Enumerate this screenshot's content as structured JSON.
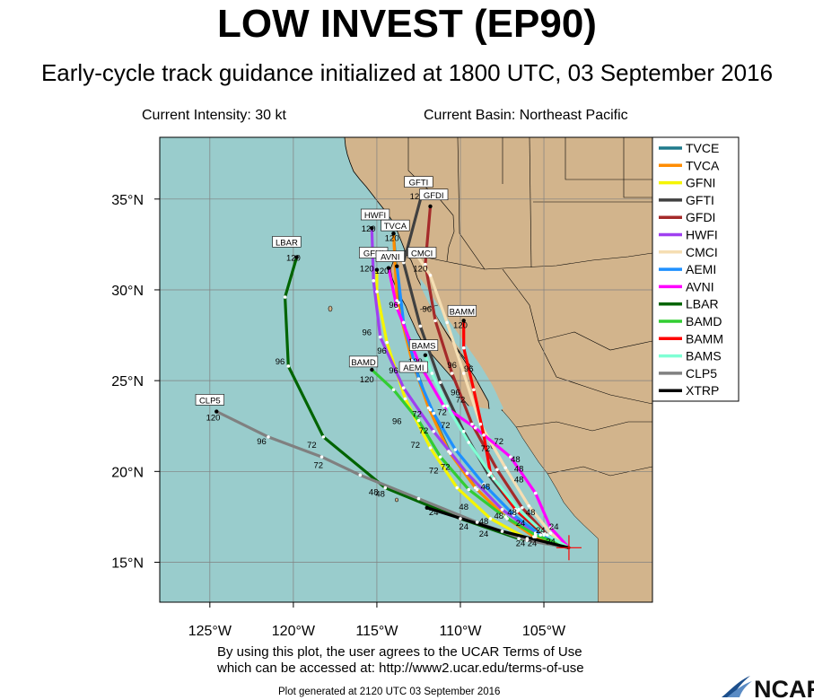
{
  "title": "LOW INVEST (EP90)",
  "subtitle": "Early-cycle track guidance initialized at 1800 UTC, 03 September 2016",
  "current_intensity": "Current Intensity: 30 kt",
  "current_basin": "Current Basin: Northeast Pacific",
  "terms_line1": "By using this plot, the user agrees to the UCAR Terms of Use",
  "terms_line2": "which can be accessed at: http://www2.ucar.edu/terms-of-use",
  "generated": "Plot generated at 2120 UTC   03 September 2016",
  "logo_text": "NCAR",
  "colors": {
    "ocean": "#99cccc",
    "land": "#d2b48c",
    "grid": "#808080"
  },
  "axes": {
    "lon_ticks": [
      -125,
      -120,
      -115,
      -110,
      -105
    ],
    "lon_labels": [
      "125°W",
      "120°W",
      "115°W",
      "110°W",
      "105°W"
    ],
    "lat_ticks": [
      15,
      20,
      25,
      30,
      35
    ],
    "lat_labels": [
      "15°N",
      "20°N",
      "25°N",
      "30°N",
      "35°N"
    ],
    "lon_range": [
      -128,
      -98.5
    ],
    "lat_range": [
      12.8,
      38.4
    ]
  },
  "current_position": {
    "lon": -103.5,
    "lat": 15.8
  },
  "legend": [
    {
      "name": "TVCE",
      "color": "#1f7a8c"
    },
    {
      "name": "TVCA",
      "color": "#ff8c00"
    },
    {
      "name": "GFNI",
      "color": "#f5f500"
    },
    {
      "name": "GFTI",
      "color": "#404040"
    },
    {
      "name": "GFDI",
      "color": "#a52a2a"
    },
    {
      "name": "HWFI",
      "color": "#a040f0"
    },
    {
      "name": "CMCI",
      "color": "#f5deb3"
    },
    {
      "name": "AEMI",
      "color": "#1e90ff"
    },
    {
      "name": "AVNI",
      "color": "#ff00ff"
    },
    {
      "name": "LBAR",
      "color": "#006400"
    },
    {
      "name": "BAMD",
      "color": "#32cd32"
    },
    {
      "name": "BAMM",
      "color": "#ff0000"
    },
    {
      "name": "BAMS",
      "color": "#7fffd4"
    },
    {
      "name": "CLP5",
      "color": "#808080"
    },
    {
      "name": "XTRP",
      "color": "#000000"
    }
  ],
  "tracks": [
    {
      "name": "TVCE",
      "color": "#1f7a8c",
      "points": [
        [
          -103.5,
          15.8
        ],
        [
          -105.5,
          16.4
        ],
        [
          -107.2,
          17.4
        ],
        [
          -109,
          19
        ],
        [
          -110.6,
          21
        ],
        [
          -111.8,
          23.4
        ],
        [
          -112.8,
          26
        ],
        [
          -113.7,
          29.3
        ],
        [
          -114,
          33.1
        ]
      ]
    },
    {
      "name": "TVCA",
      "color": "#ff8c00",
      "points": [
        [
          -103.5,
          15.8
        ],
        [
          -105.6,
          16.4
        ],
        [
          -107.3,
          17.5
        ],
        [
          -109.1,
          19.1
        ],
        [
          -110.7,
          21.1
        ],
        [
          -111.9,
          23.5
        ],
        [
          -112.9,
          26.1
        ],
        [
          -113.8,
          29.4
        ],
        [
          -114,
          33.1
        ]
      ]
    },
    {
      "name": "GFNI",
      "color": "#f5f500",
      "points": [
        [
          -103.5,
          15.8
        ],
        [
          -106,
          16.3
        ],
        [
          -108.2,
          17.4
        ],
        [
          -110.2,
          19.1
        ],
        [
          -111.8,
          21.3
        ],
        [
          -113.3,
          24
        ],
        [
          -114.4,
          27.1
        ],
        [
          -115,
          29.9
        ],
        [
          -115,
          31.1
        ]
      ]
    },
    {
      "name": "GFTI",
      "color": "#404040",
      "points": [
        [
          -103.5,
          15.8
        ],
        [
          -105,
          16.5
        ],
        [
          -106.6,
          17.8
        ],
        [
          -108.3,
          19.8
        ],
        [
          -109.8,
          22.2
        ],
        [
          -111.2,
          24.9
        ],
        [
          -112.4,
          28
        ],
        [
          -113.4,
          31.5
        ],
        [
          -112.3,
          35.3
        ]
      ]
    },
    {
      "name": "GFDI",
      "color": "#a52a2a",
      "points": [
        [
          -103.5,
          15.8
        ],
        [
          -104.8,
          16.5
        ],
        [
          -106.3,
          18
        ],
        [
          -107.8,
          20.1
        ],
        [
          -109.3,
          22.6
        ],
        [
          -110.5,
          25.4
        ],
        [
          -111.5,
          28.3
        ],
        [
          -112.1,
          31.4
        ],
        [
          -111.8,
          34.6
        ]
      ]
    },
    {
      "name": "HWFI",
      "color": "#a040f0",
      "points": [
        [
          -103.5,
          15.8
        ],
        [
          -105.5,
          16.6
        ],
        [
          -107.5,
          17.9
        ],
        [
          -109.6,
          19.9
        ],
        [
          -111.6,
          22.2
        ],
        [
          -113.4,
          24.6
        ],
        [
          -114.8,
          27.4
        ],
        [
          -115.2,
          30.5
        ],
        [
          -115.3,
          33.4
        ]
      ]
    },
    {
      "name": "CMCI",
      "color": "#f5deb3",
      "points": [
        [
          -103.5,
          15.8
        ],
        [
          -104.6,
          16.6
        ],
        [
          -105.9,
          18.1
        ],
        [
          -107.3,
          20.2
        ],
        [
          -108.8,
          22.6
        ],
        [
          -109.8,
          25.4
        ],
        [
          -110.8,
          28.2
        ],
        [
          -111.8,
          30.8
        ],
        [
          -112.6,
          31.9
        ]
      ]
    },
    {
      "name": "AEMI",
      "color": "#1e90ff",
      "points": [
        [
          -103.5,
          15.8
        ],
        [
          -105.2,
          16.5
        ],
        [
          -106.8,
          17.6
        ],
        [
          -108.6,
          19.3
        ],
        [
          -110.3,
          21.2
        ],
        [
          -111.6,
          23.2
        ],
        [
          -112.5,
          25.1
        ],
        [
          -113.4,
          28.2
        ],
        [
          -113.8,
          31.3
        ]
      ]
    },
    {
      "name": "AVNI",
      "color": "#ff00ff",
      "points": [
        [
          -103.5,
          15.8
        ],
        [
          -104.6,
          16.9
        ],
        [
          -105.5,
          18.8
        ],
        [
          -107,
          20.8
        ],
        [
          -109.1,
          22.4
        ],
        [
          -111,
          23.6
        ],
        [
          -112.5,
          26
        ],
        [
          -113.8,
          29
        ],
        [
          -114.3,
          31.2
        ]
      ]
    },
    {
      "name": "LBAR",
      "color": "#006400",
      "points": [
        [
          -103.5,
          15.8
        ],
        [
          -106.5,
          16.3
        ],
        [
          -110,
          17.4
        ],
        [
          -114.5,
          19.1
        ],
        [
          -118.2,
          21.9
        ],
        [
          -120.3,
          25.8
        ],
        [
          -120.5,
          29.6
        ],
        [
          -119.8,
          31.8
        ]
      ]
    },
    {
      "name": "BAMD",
      "color": "#32cd32",
      "points": [
        [
          -103.5,
          15.8
        ],
        [
          -105.5,
          16.5
        ],
        [
          -107.5,
          17.6
        ],
        [
          -109.5,
          19
        ],
        [
          -111.2,
          20.8
        ],
        [
          -112.5,
          22.8
        ],
        [
          -114,
          24.5
        ],
        [
          -115.3,
          25.6
        ]
      ]
    },
    {
      "name": "BAMM",
      "color": "#ff0000",
      "points": [
        [
          -103.5,
          15.8
        ],
        [
          -105,
          16.6
        ],
        [
          -106.7,
          17.9
        ],
        [
          -108.2,
          19.9
        ],
        [
          -108.6,
          22
        ],
        [
          -109.2,
          24.5
        ],
        [
          -109.8,
          26.8
        ],
        [
          -109.8,
          28.3
        ]
      ]
    },
    {
      "name": "BAMS",
      "color": "#7fffd4",
      "points": [
        [
          -103.5,
          15.8
        ],
        [
          -105,
          16.6
        ],
        [
          -106.5,
          17.9
        ],
        [
          -108,
          19.6
        ],
        [
          -109.5,
          21.6
        ],
        [
          -110.8,
          23.6
        ],
        [
          -111.7,
          25.4
        ],
        [
          -112.1,
          26.4
        ]
      ]
    },
    {
      "name": "CLP5",
      "color": "#808080",
      "points": [
        [
          -103.5,
          15.8
        ],
        [
          -106,
          16.2
        ],
        [
          -109,
          17.2
        ],
        [
          -112.5,
          18.5
        ],
        [
          -116,
          19.8
        ],
        [
          -118.3,
          20.8
        ],
        [
          -121.5,
          21.9
        ],
        [
          -124.6,
          23.3
        ]
      ]
    },
    {
      "name": "XTRP",
      "color": "#000000",
      "points": [
        [
          -103.5,
          15.8
        ],
        [
          -107.5,
          16.7
        ],
        [
          -112,
          18
        ]
      ]
    }
  ],
  "labels": [
    {
      "text": "GFTI",
      "lon": -112.5,
      "lat": 35.9
    },
    {
      "text": "GFDI",
      "lon": -111.6,
      "lat": 35.2
    },
    {
      "text": "HWFI",
      "lon": -115.1,
      "lat": 34.1
    },
    {
      "text": "TVCA",
      "lon": -113.9,
      "lat": 33.5
    },
    {
      "text": "LBAR",
      "lon": -120.4,
      "lat": 32.6
    },
    {
      "text": "GFNI",
      "lon": -115.2,
      "lat": 32.0
    },
    {
      "text": "AVNI",
      "lon": -114.2,
      "lat": 31.8
    },
    {
      "text": "CMCI",
      "lon": -112.3,
      "lat": 32.0
    },
    {
      "text": "BAMM",
      "lon": -109.9,
      "lat": 28.8
    },
    {
      "text": "BAMS",
      "lon": -112.2,
      "lat": 26.9
    },
    {
      "text": "BAMD",
      "lon": -115.8,
      "lat": 26.0
    },
    {
      "text": "AEMI",
      "lon": -112.8,
      "lat": 25.7
    },
    {
      "text": "CLP5",
      "lon": -125.0,
      "lat": 23.9
    }
  ],
  "hour_labels": [
    {
      "text": "120",
      "lon": -112.6,
      "lat": 35.0
    },
    {
      "text": "120",
      "lon": -115.5,
      "lat": 33.2
    },
    {
      "text": "120",
      "lon": -114.1,
      "lat": 32.7
    },
    {
      "text": "120",
      "lon": -120.0,
      "lat": 31.6
    },
    {
      "text": "120",
      "lon": -115.6,
      "lat": 31.0
    },
    {
      "text": "120",
      "lon": -114.7,
      "lat": 30.9
    },
    {
      "text": "120",
      "lon": -112.4,
      "lat": 31.0
    },
    {
      "text": "120",
      "lon": -110.0,
      "lat": 27.9
    },
    {
      "text": "120",
      "lon": -112.7,
      "lat": 25.9
    },
    {
      "text": "120",
      "lon": -115.6,
      "lat": 24.9
    },
    {
      "text": "120",
      "lon": -124.8,
      "lat": 22.8
    },
    {
      "text": "96",
      "lon": -114.0,
      "lat": 29.0
    },
    {
      "text": "96",
      "lon": -112.0,
      "lat": 28.8
    },
    {
      "text": "96",
      "lon": -115.6,
      "lat": 27.5
    },
    {
      "text": "96",
      "lon": -114.7,
      "lat": 26.5
    },
    {
      "text": "96",
      "lon": -110.5,
      "lat": 25.7
    },
    {
      "text": "96",
      "lon": -109.5,
      "lat": 25.5
    },
    {
      "text": "96",
      "lon": -114.0,
      "lat": 25.4
    },
    {
      "text": "96",
      "lon": -110.3,
      "lat": 24.2
    },
    {
      "text": "96",
      "lon": -120.8,
      "lat": 25.9
    },
    {
      "text": "96",
      "lon": -113.8,
      "lat": 22.6
    },
    {
      "text": "96",
      "lon": -121.9,
      "lat": 21.5
    },
    {
      "text": "72",
      "lon": -110.0,
      "lat": 23.8
    },
    {
      "text": "72",
      "lon": -111.1,
      "lat": 23.1
    },
    {
      "text": "72",
      "lon": -112.6,
      "lat": 23.0
    },
    {
      "text": "72",
      "lon": -110.9,
      "lat": 22.4
    },
    {
      "text": "72",
      "lon": -112.2,
      "lat": 22.1
    },
    {
      "text": "72",
      "lon": -112.7,
      "lat": 21.3
    },
    {
      "text": "72",
      "lon": -108.5,
      "lat": 21.1
    },
    {
      "text": "72",
      "lon": -107.7,
      "lat": 21.5
    },
    {
      "text": "72",
      "lon": -110.9,
      "lat": 20.1
    },
    {
      "text": "72",
      "lon": -111.6,
      "lat": 19.9
    },
    {
      "text": "72",
      "lon": -118.9,
      "lat": 21.3
    },
    {
      "text": "72",
      "lon": -118.5,
      "lat": 20.2
    },
    {
      "text": "48",
      "lon": -106.7,
      "lat": 20.5
    },
    {
      "text": "48",
      "lon": -106.5,
      "lat": 20.0
    },
    {
      "text": "48",
      "lon": -106.5,
      "lat": 19.4
    },
    {
      "text": "48",
      "lon": -106.9,
      "lat": 17.6
    },
    {
      "text": "48",
      "lon": -105.8,
      "lat": 17.6
    },
    {
      "text": "48",
      "lon": -108.5,
      "lat": 19.0
    },
    {
      "text": "48",
      "lon": -109.8,
      "lat": 17.9
    },
    {
      "text": "48",
      "lon": -107.7,
      "lat": 17.4
    },
    {
      "text": "48",
      "lon": -108.6,
      "lat": 17.1
    },
    {
      "text": "48",
      "lon": -115.2,
      "lat": 18.7
    },
    {
      "text": "48",
      "lon": -114.8,
      "lat": 18.6
    },
    {
      "text": "24",
      "lon": -104.4,
      "lat": 16.8
    },
    {
      "text": "24",
      "lon": -105.2,
      "lat": 16.6
    },
    {
      "text": "24",
      "lon": -104.6,
      "lat": 16.0
    },
    {
      "text": "24",
      "lon": -105.7,
      "lat": 15.9
    },
    {
      "text": "24",
      "lon": -106.4,
      "lat": 15.9
    },
    {
      "text": "24",
      "lon": -106.4,
      "lat": 17.0
    },
    {
      "text": "24",
      "lon": -108.6,
      "lat": 16.4
    },
    {
      "text": "24",
      "lon": -109.8,
      "lat": 16.8
    },
    {
      "text": "24",
      "lon": -111.6,
      "lat": 17.6
    }
  ]
}
